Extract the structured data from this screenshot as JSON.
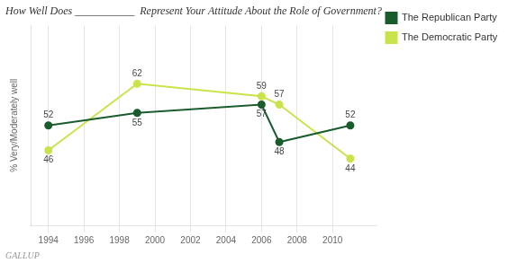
{
  "chart_data": {
    "type": "line",
    "title": "How Well Does ___________  Represent Your Attitude About the Role of Government?",
    "ylabel": "% Very/Moderately well",
    "x": [
      1994,
      1999,
      2006,
      2007,
      2011
    ],
    "series": [
      {
        "name": "The Republican Party",
        "color": "#1a5c2e",
        "values": [
          52,
          55,
          57,
          48,
          52
        ]
      },
      {
        "name": "The Democratic Party",
        "color": "#c8e44a",
        "values": [
          46,
          62,
          59,
          57,
          44
        ]
      }
    ],
    "xlim": [
      1993.0,
      2012.5
    ],
    "xticks": [
      1994,
      1996,
      1998,
      2000,
      2002,
      2004,
      2006,
      2008,
      2010
    ],
    "ylim": [
      28,
      76
    ],
    "grid": true,
    "legend": "right",
    "data_labels": true,
    "tick_labels": "x",
    "annotations": [
      "GALLUP"
    ]
  }
}
